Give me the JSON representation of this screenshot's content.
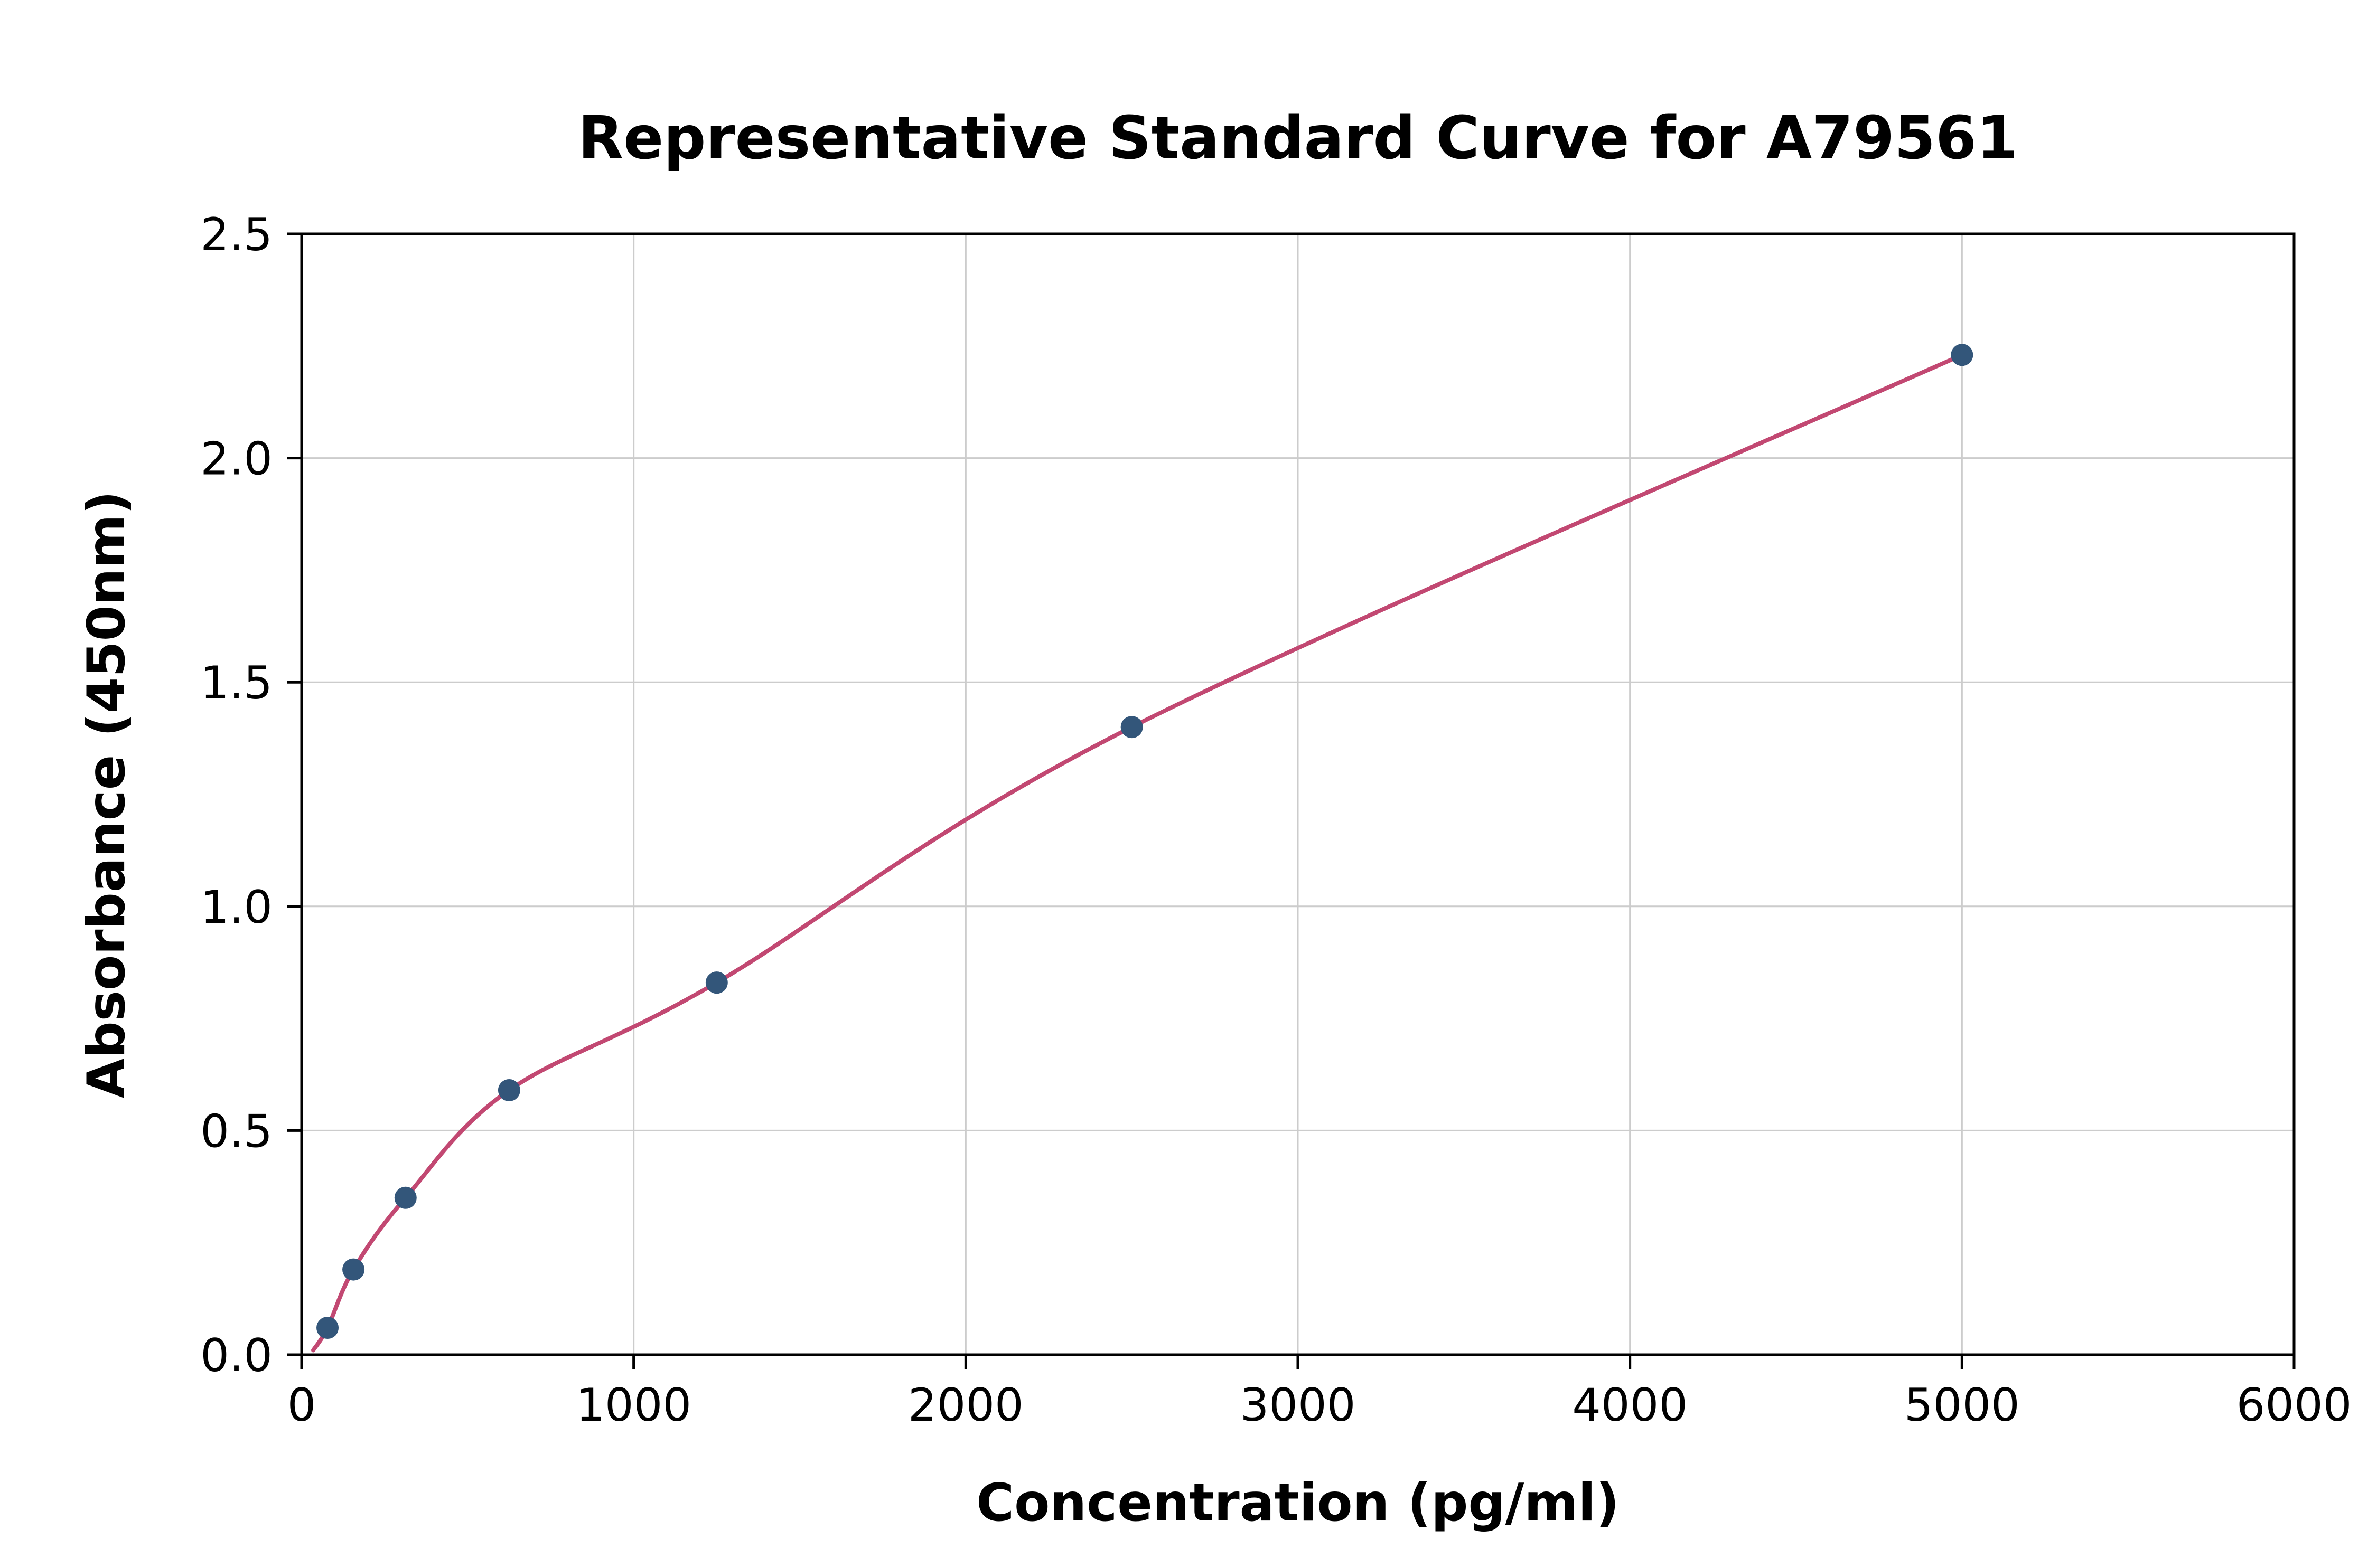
{
  "chart_data": {
    "type": "scatter",
    "title": "Representative Standard Curve for A79561",
    "xlabel": "Concentration (pg/ml)",
    "ylabel": "Absorbance (450nm)",
    "xlim": [
      0,
      6000
    ],
    "ylim": [
      0,
      2.5
    ],
    "x_ticks": [
      0,
      1000,
      2000,
      3000,
      4000,
      5000,
      6000
    ],
    "x_tick_labels": [
      "0",
      "1000",
      "2000",
      "3000",
      "4000",
      "5000",
      "6000"
    ],
    "y_ticks": [
      0,
      0.5,
      1.0,
      1.5,
      2.0,
      2.5
    ],
    "y_tick_labels": [
      "0.0",
      "0.5",
      "1.0",
      "1.5",
      "2.0",
      "2.5"
    ],
    "grid": true,
    "legend": "none",
    "points": [
      {
        "x": 78,
        "y": 0.06
      },
      {
        "x": 156,
        "y": 0.19
      },
      {
        "x": 313,
        "y": 0.35
      },
      {
        "x": 625,
        "y": 0.59
      },
      {
        "x": 1250,
        "y": 0.83
      },
      {
        "x": 2500,
        "y": 1.4
      },
      {
        "x": 5000,
        "y": 2.23
      }
    ],
    "curve_start": {
      "x": 35,
      "y": 0.01
    },
    "colors": {
      "point_color": "#33567a",
      "curve_color": "#c24872",
      "grid_color": "#cccccc",
      "axis_color": "#000000"
    }
  }
}
